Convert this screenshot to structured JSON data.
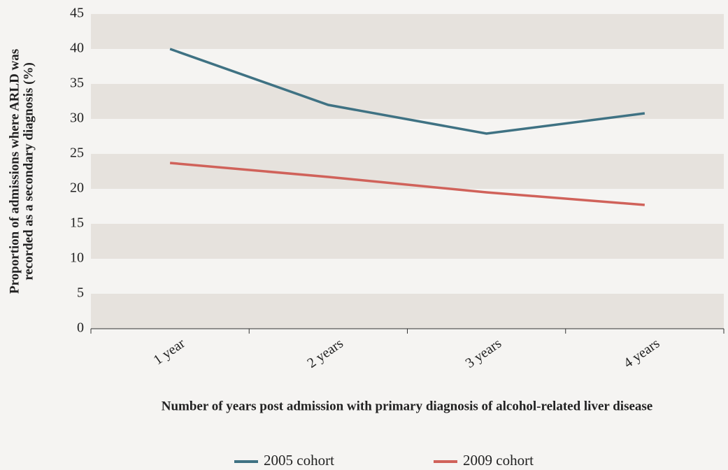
{
  "chart_data": {
    "type": "line",
    "y_label": [
      "Proportion of admissions where ARLD was",
      "recorded as a secondary diagnosis (%)"
    ],
    "x_label": "Number of years post admission with primary diagnosis of alcohol-related liver disease",
    "categories": [
      "1 year",
      "2 years",
      "3 years",
      "4 years"
    ],
    "series": [
      {
        "name": "2005 cohort",
        "color": "#3f7283",
        "values": [
          40,
          32,
          27.9,
          30.8
        ]
      },
      {
        "name": "2009 cohort",
        "color": "#d0625a",
        "values": [
          23.7,
          21.7,
          19.5,
          17.7
        ]
      }
    ],
    "ylim": [
      0,
      45
    ],
    "yticks": [
      0,
      5,
      10,
      15,
      20,
      25,
      30,
      35,
      40,
      45
    ],
    "grid": "bands"
  }
}
